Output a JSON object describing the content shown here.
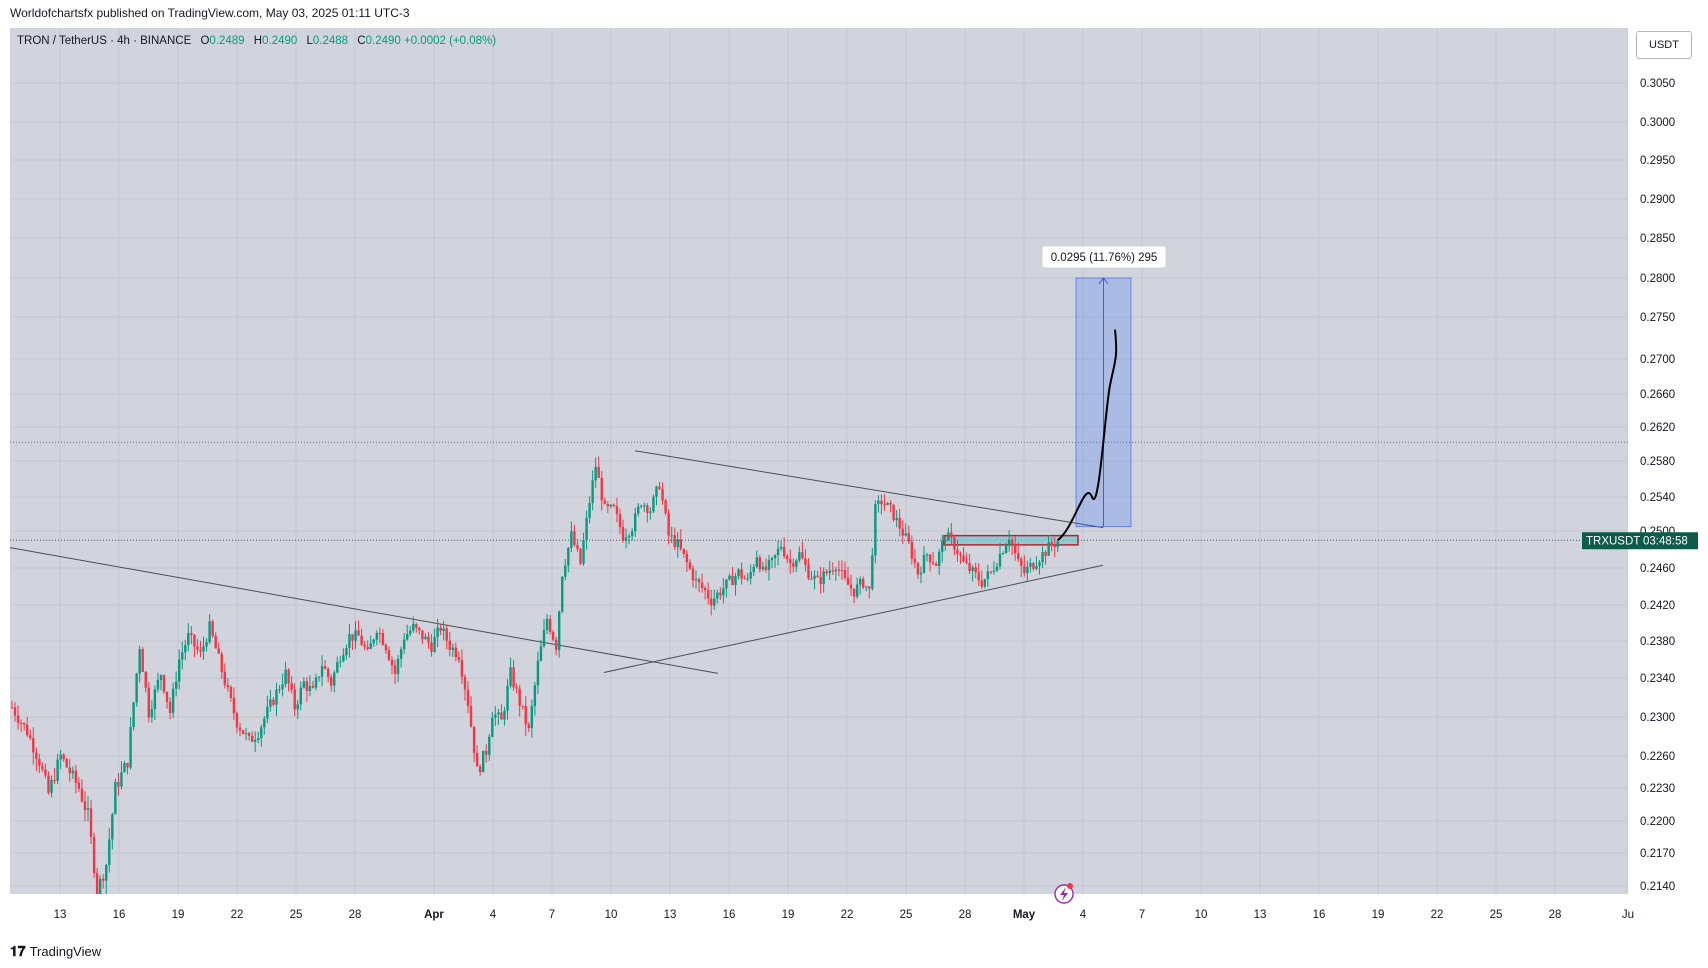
{
  "header": {
    "published_text": "Worldofchartsfx published on TradingView.com, May 03, 2025 01:11 UTC-3"
  },
  "legend": {
    "symbol": "TRON / TetherUS · 4h · BINANCE",
    "o_label": "O",
    "o_value": "0.2489",
    "h_label": "H",
    "h_value": "0.2490",
    "l_label": "L",
    "l_value": "0.2488",
    "c_label": "C",
    "c_value": "0.2490",
    "change": "+0.0002 (+0.08%)"
  },
  "price_unit": "USDT",
  "footer": {
    "logo": "𝟏𝟕",
    "brand": "TradingView"
  },
  "colors": {
    "up": "#089981",
    "down": "#f23645",
    "bg": "#d1d4dc",
    "projection": "#2962ff"
  },
  "chart_data": {
    "type": "candlestick",
    "symbol_label": "TRXUSDT",
    "countdown": "03:48:58",
    "last_price": 0.249,
    "y_ticks": [
      "0.3050",
      "0.3000",
      "0.2950",
      "0.2900",
      "0.2850",
      "0.2800",
      "0.2750",
      "0.2700",
      "0.2660",
      "0.2620",
      "0.2580",
      "0.2540",
      "0.2500",
      "0.2460",
      "0.2420",
      "0.2380",
      "0.2340",
      "0.2300",
      "0.2260",
      "0.2230",
      "0.2200",
      "0.2170",
      "0.2140"
    ],
    "x_ticks": [
      "13",
      "16",
      "19",
      "22",
      "25",
      "28",
      "Apr",
      "4",
      "7",
      "10",
      "13",
      "16",
      "19",
      "22",
      "25",
      "28",
      "May",
      "4",
      "7",
      "10",
      "13",
      "16",
      "19",
      "22",
      "25",
      "28",
      "Ju"
    ],
    "measure_label": "0.0295 (11.76%) 295",
    "measure_from": 0.2505,
    "measure_to": 0.28,
    "path": [
      [
        0,
        0.231
      ],
      [
        5,
        0.2285
      ],
      [
        9,
        0.2255
      ],
      [
        12,
        0.2225
      ],
      [
        16,
        0.226
      ],
      [
        19,
        0.2245
      ],
      [
        22,
        0.223
      ],
      [
        25,
        0.2205
      ],
      [
        28,
        0.2135
      ],
      [
        31,
        0.216
      ],
      [
        34,
        0.223
      ],
      [
        38,
        0.2255
      ],
      [
        42,
        0.2375
      ],
      [
        45,
        0.2305
      ],
      [
        49,
        0.2345
      ],
      [
        52,
        0.2305
      ],
      [
        55,
        0.236
      ],
      [
        58,
        0.2385
      ],
      [
        62,
        0.2365
      ],
      [
        65,
        0.2395
      ],
      [
        68,
        0.236
      ],
      [
        71,
        0.2325
      ],
      [
        74,
        0.2295
      ],
      [
        78,
        0.2275
      ],
      [
        81,
        0.2285
      ],
      [
        84,
        0.2305
      ],
      [
        87,
        0.2325
      ],
      [
        90,
        0.2345
      ],
      [
        93,
        0.231
      ],
      [
        96,
        0.2335
      ],
      [
        99,
        0.2325
      ],
      [
        102,
        0.2355
      ],
      [
        105,
        0.2335
      ],
      [
        108,
        0.2365
      ],
      [
        111,
        0.2385
      ],
      [
        114,
        0.2385
      ],
      [
        117,
        0.2365
      ],
      [
        120,
        0.2395
      ],
      [
        123,
        0.2375
      ],
      [
        126,
        0.2345
      ],
      [
        129,
        0.2385
      ],
      [
        132,
        0.2395
      ],
      [
        135,
        0.2385
      ],
      [
        138,
        0.2375
      ],
      [
        141,
        0.2395
      ],
      [
        144,
        0.2375
      ],
      [
        147,
        0.2365
      ],
      [
        150,
        0.2315
      ],
      [
        153,
        0.2245
      ],
      [
        156,
        0.2265
      ],
      [
        158,
        0.2305
      ],
      [
        161,
        0.2295
      ],
      [
        164,
        0.2345
      ],
      [
        167,
        0.2315
      ],
      [
        170,
        0.2285
      ],
      [
        173,
        0.2355
      ],
      [
        176,
        0.2405
      ],
      [
        179,
        0.2375
      ],
      [
        181,
        0.2455
      ],
      [
        184,
        0.2495
      ],
      [
        187,
        0.2465
      ],
      [
        190,
        0.2535
      ],
      [
        192,
        0.2575
      ],
      [
        195,
        0.2525
      ],
      [
        198,
        0.2525
      ],
      [
        201,
        0.2495
      ],
      [
        204,
        0.2505
      ],
      [
        207,
        0.2535
      ],
      [
        210,
        0.2525
      ],
      [
        213,
        0.2555
      ],
      [
        216,
        0.2495
      ],
      [
        219,
        0.2485
      ],
      [
        222,
        0.2465
      ],
      [
        225,
        0.2445
      ],
      [
        228,
        0.2435
      ],
      [
        230,
        0.2425
      ],
      [
        233,
        0.2435
      ],
      [
        236,
        0.2445
      ],
      [
        239,
        0.2455
      ],
      [
        242,
        0.2445
      ],
      [
        245,
        0.2475
      ],
      [
        247,
        0.2455
      ],
      [
        250,
        0.2465
      ],
      [
        253,
        0.2485
      ],
      [
        256,
        0.2465
      ],
      [
        259,
        0.2475
      ],
      [
        262,
        0.2455
      ],
      [
        265,
        0.2445
      ],
      [
        268,
        0.2455
      ],
      [
        271,
        0.2465
      ],
      [
        274,
        0.2445
      ],
      [
        277,
        0.2435
      ],
      [
        280,
        0.2445
      ],
      [
        282,
        0.2435
      ],
      [
        284,
        0.2525
      ],
      [
        286,
        0.2535
      ],
      [
        289,
        0.2525
      ],
      [
        292,
        0.2505
      ],
      [
        295,
        0.2485
      ],
      [
        298,
        0.2455
      ],
      [
        301,
        0.2475
      ],
      [
        304,
        0.2465
      ],
      [
        307,
        0.2495
      ],
      [
        310,
        0.2485
      ],
      [
        313,
        0.2465
      ],
      [
        316,
        0.2455
      ],
      [
        319,
        0.2445
      ],
      [
        322,
        0.2455
      ],
      [
        325,
        0.2475
      ],
      [
        328,
        0.2495
      ],
      [
        331,
        0.2465
      ],
      [
        333,
        0.2455
      ],
      [
        336,
        0.2465
      ],
      [
        339,
        0.2475
      ],
      [
        342,
        0.2485
      ],
      [
        344,
        0.2489
      ],
      [
        345,
        0.249
      ]
    ],
    "range_box": {
      "from": 0.2495,
      "to": 0.2485
    }
  }
}
